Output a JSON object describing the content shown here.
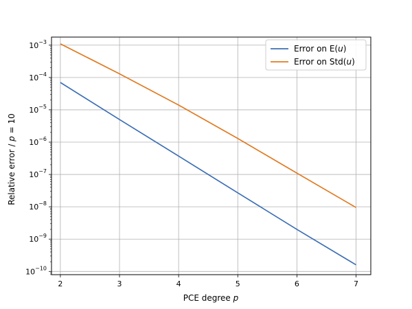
{
  "chart_data": {
    "type": "line",
    "title": "",
    "xlabel": "PCE degree p",
    "xlabel_parts": [
      "PCE degree ",
      "p"
    ],
    "ylabel": "Relative error / p = 10",
    "ylabel_parts": [
      "Relative error / ",
      "p",
      " = 10"
    ],
    "yscale": "log",
    "xlim": [
      1.85,
      7.25
    ],
    "ylim_exp": [
      -10.1,
      -2.75
    ],
    "grid": true,
    "legend_position": "top-right",
    "x": [
      2,
      3,
      4,
      5,
      6,
      7
    ],
    "series": [
      {
        "name": "Error on E(u)",
        "name_parts": [
          "Error on E(",
          "u",
          ")"
        ],
        "color": "#3b6eb5",
        "values": [
          7e-05,
          5e-06,
          3.7e-07,
          2.7e-08,
          2e-09,
          1.6e-10
        ]
      },
      {
        "name": "Error on Std(u)",
        "name_parts": [
          "Error on Std(",
          "u",
          ")"
        ],
        "color": "#e07b22",
        "values": [
          0.0011,
          0.00013,
          1.4e-05,
          1.3e-06,
          1.1e-07,
          9.5e-09
        ]
      }
    ],
    "xticks": [
      "2",
      "3",
      "4",
      "5",
      "6",
      "7"
    ],
    "yticks": [
      {
        "base": "10",
        "exp": "−10",
        "value_exp": -10
      },
      {
        "base": "10",
        "exp": "−9",
        "value_exp": -9
      },
      {
        "base": "10",
        "exp": "−8",
        "value_exp": -8
      },
      {
        "base": "10",
        "exp": "−7",
        "value_exp": -7
      },
      {
        "base": "10",
        "exp": "−6",
        "value_exp": -6
      },
      {
        "base": "10",
        "exp": "−5",
        "value_exp": -5
      },
      {
        "base": "10",
        "exp": "−4",
        "value_exp": -4
      },
      {
        "base": "10",
        "exp": "−3",
        "value_exp": -3
      }
    ]
  }
}
